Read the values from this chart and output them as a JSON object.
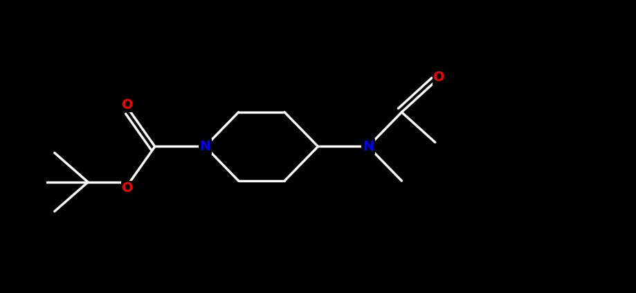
{
  "bg_color": "#000000",
  "bond_color": "#ffffff",
  "N_color": "#0000ff",
  "O_color": "#ff0000",
  "linewidth": 2.5,
  "figsize": [
    9.19,
    4.23
  ],
  "dpi": 100,
  "xlim": [
    0,
    13
  ],
  "ylim": [
    -3.5,
    3.5
  ]
}
